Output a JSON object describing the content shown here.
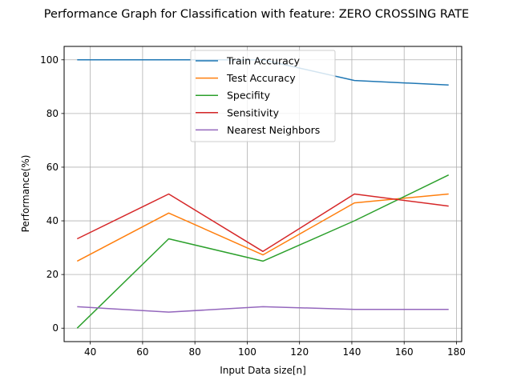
{
  "chart_data": {
    "type": "line",
    "title": "Performance Graph for Classification with feature: ZERO CROSSING RATE",
    "xlabel": "Input Data size[n]",
    "ylabel": "Performance(%)",
    "x": [
      35,
      70,
      106,
      141,
      177
    ],
    "xlim": [
      30,
      182
    ],
    "ylim": [
      -5,
      105
    ],
    "xticks": [
      40,
      60,
      80,
      100,
      120,
      140,
      160,
      180
    ],
    "yticks": [
      0,
      20,
      40,
      60,
      80,
      100
    ],
    "grid": true,
    "legend_position": "top-center",
    "series": [
      {
        "name": "Train Accuracy",
        "color": "#1f77b4",
        "values": [
          100,
          100,
          100,
          92.3,
          90.6
        ]
      },
      {
        "name": "Test Accuracy",
        "color": "#ff7f0e",
        "values": [
          25,
          42.9,
          27.3,
          46.7,
          50
        ]
      },
      {
        "name": "Specifity",
        "color": "#2ca02c",
        "values": [
          0,
          33.3,
          25,
          40,
          57.1
        ]
      },
      {
        "name": "Sensitivity",
        "color": "#d62728",
        "values": [
          33.3,
          50,
          28.6,
          50,
          45.5
        ]
      },
      {
        "name": "Nearest Neighbors",
        "color": "#9467bd",
        "values": [
          8,
          6,
          8,
          7,
          7
        ]
      }
    ]
  }
}
